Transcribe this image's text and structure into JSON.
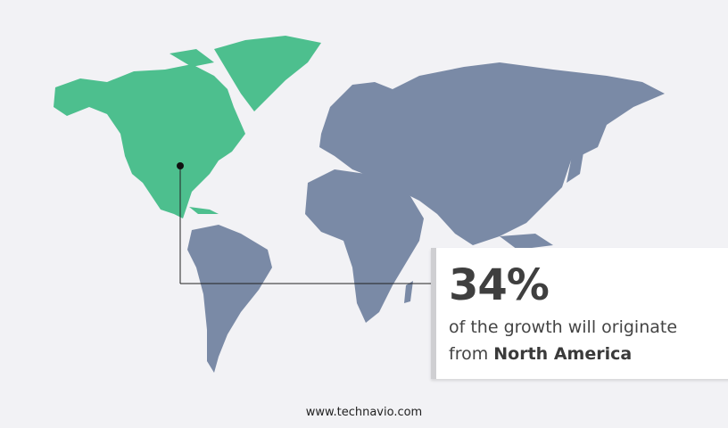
{
  "callout": {
    "value": "34%",
    "text_line1": "of the growth will originate",
    "text_prefix": "from",
    "region": "North America"
  },
  "map": {
    "highlighted_region": "North America",
    "highlight_color": "#4dbf8e",
    "other_color": "#7a8aa6"
  },
  "footer": {
    "url": "www.technavio.com"
  }
}
